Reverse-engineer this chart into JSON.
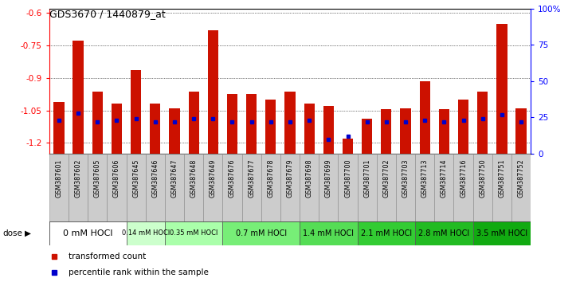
{
  "title": "GDS3670 / 1440879_at",
  "samples": [
    "GSM387601",
    "GSM387602",
    "GSM387605",
    "GSM387606",
    "GSM387645",
    "GSM387646",
    "GSM387647",
    "GSM387648",
    "GSM387649",
    "GSM387676",
    "GSM387677",
    "GSM387678",
    "GSM387679",
    "GSM387698",
    "GSM387699",
    "GSM387700",
    "GSM387701",
    "GSM387702",
    "GSM387703",
    "GSM387713",
    "GSM387714",
    "GSM387716",
    "GSM387750",
    "GSM387751",
    "GSM387752"
  ],
  "transformed_counts": [
    -1.01,
    -0.73,
    -0.965,
    -1.02,
    -0.865,
    -1.02,
    -1.04,
    -0.965,
    -0.68,
    -0.975,
    -0.975,
    -1.0,
    -0.965,
    -1.02,
    -1.03,
    -1.18,
    -1.09,
    -1.045,
    -1.04,
    -0.915,
    -1.045,
    -1.0,
    -0.965,
    -0.65,
    -1.04
  ],
  "percentile_ranks": [
    23,
    28,
    22,
    23,
    24,
    22,
    22,
    24,
    24,
    22,
    22,
    22,
    22,
    23,
    10,
    12,
    22,
    22,
    22,
    23,
    22,
    23,
    24,
    27,
    22
  ],
  "dose_groups": [
    {
      "label": "0 mM HOCl",
      "start": 0,
      "end": 4,
      "color": "#ffffff",
      "fontsize": 8
    },
    {
      "label": "0.14 mM HOCl",
      "start": 4,
      "end": 6,
      "color": "#ccffcc",
      "fontsize": 6
    },
    {
      "label": "0.35 mM HOCl",
      "start": 6,
      "end": 9,
      "color": "#aaffaa",
      "fontsize": 6
    },
    {
      "label": "0.7 mM HOCl",
      "start": 9,
      "end": 13,
      "color": "#77ee77",
      "fontsize": 7
    },
    {
      "label": "1.4 mM HOCl",
      "start": 13,
      "end": 16,
      "color": "#55dd55",
      "fontsize": 7
    },
    {
      "label": "2.1 mM HOCl",
      "start": 16,
      "end": 19,
      "color": "#33cc33",
      "fontsize": 7
    },
    {
      "label": "2.8 mM HOCl",
      "start": 19,
      "end": 22,
      "color": "#22bb22",
      "fontsize": 7
    },
    {
      "label": "3.5 mM HOCl",
      "start": 22,
      "end": 25,
      "color": "#11aa11",
      "fontsize": 7
    }
  ],
  "bar_color": "#cc1100",
  "dot_color": "#0000cc",
  "ylim_left": [
    -1.25,
    -0.58
  ],
  "ylim_right": [
    0,
    100
  ],
  "yticks_left": [
    -1.2,
    -1.05,
    -0.9,
    -0.75,
    -0.6
  ],
  "yticks_right": [
    0,
    25,
    50,
    75,
    100
  ],
  "bar_bottom": -1.25,
  "cell_color": "#cccccc",
  "cell_edge_color": "#888888"
}
